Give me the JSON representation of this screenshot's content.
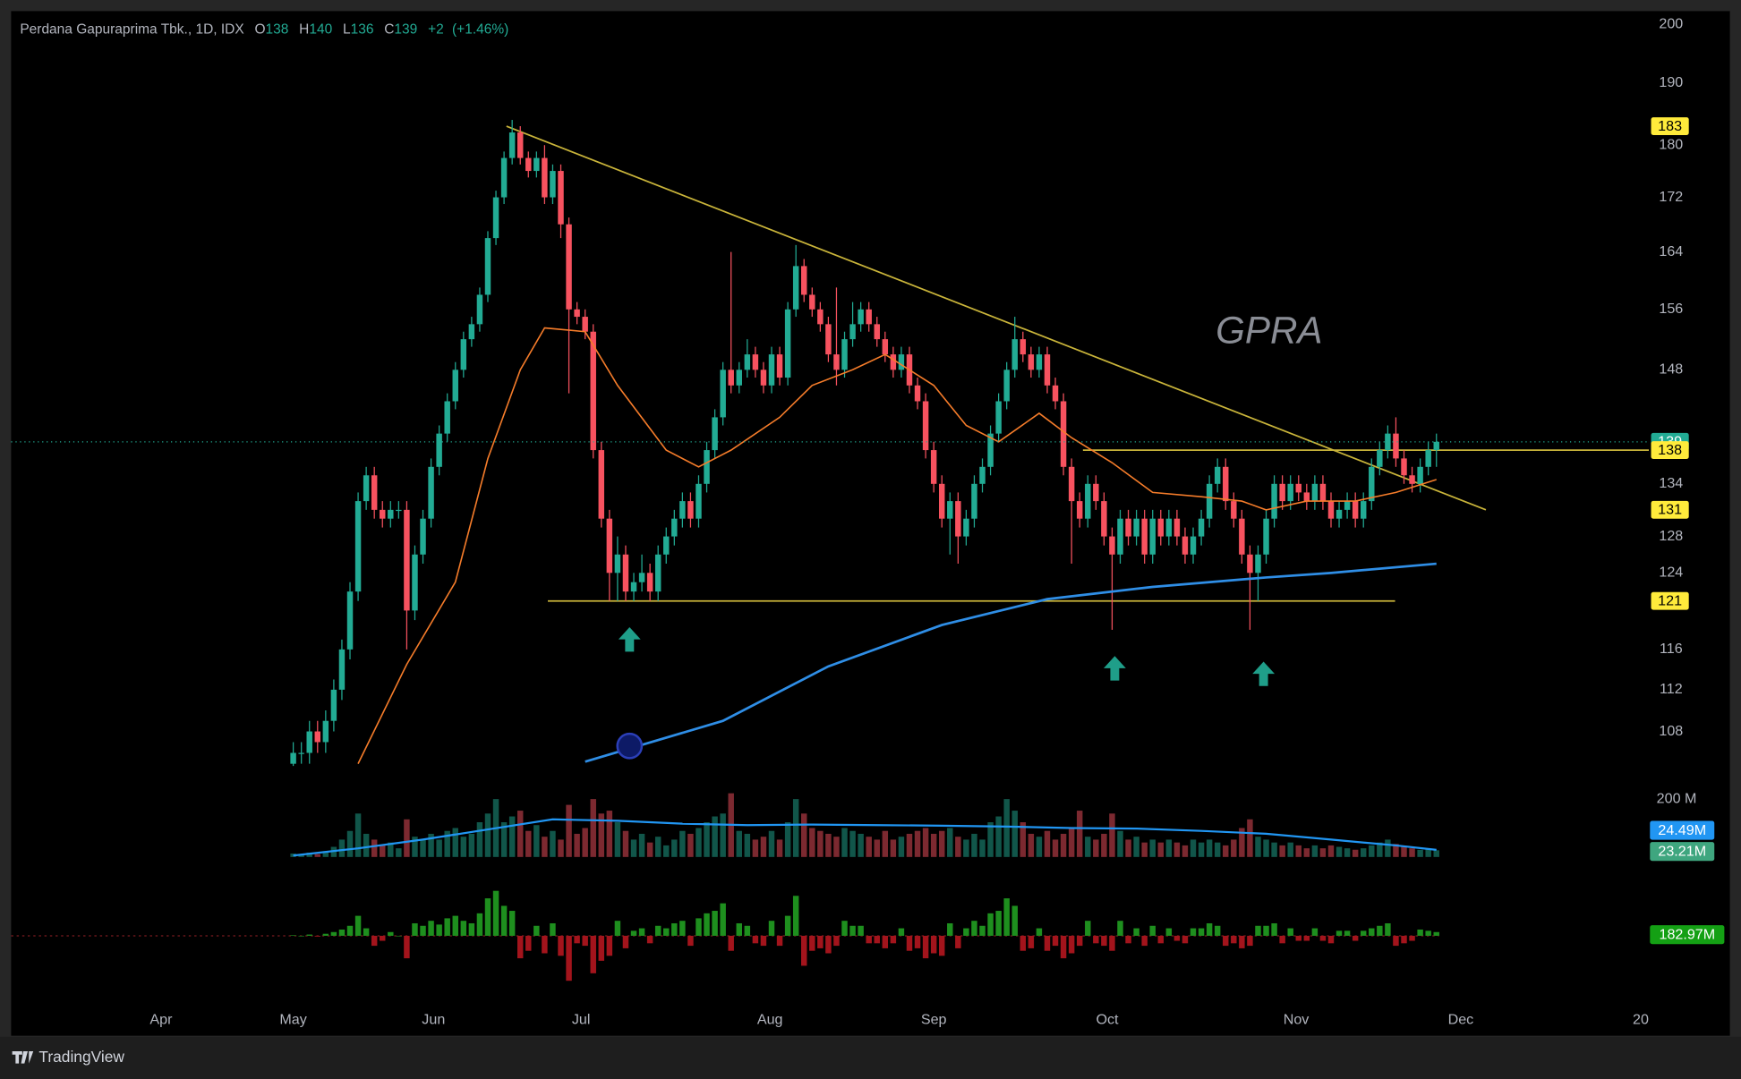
{
  "chart_data": {
    "type": "candlestick",
    "title": "Perdana Gapuraprima Tbk., 1D, IDX",
    "ohlc_labels": [
      "O",
      "H",
      "L",
      "C"
    ],
    "change": "+2",
    "change_pct": "(+1.46%)",
    "watermark": "GPRA",
    "footer": "TradingView",
    "log": true,
    "grid": false,
    "up_color": "#22ab94",
    "down_color": "#f7525f",
    "xlim": [
      -34.8,
      167.2
    ],
    "xticks": [
      {
        "value": -16.3,
        "label": "Apr"
      },
      {
        "value": 0,
        "label": "May"
      },
      {
        "value": 17.3,
        "label": "Jun"
      },
      {
        "value": 35.5,
        "label": "Jul"
      },
      {
        "value": 58.8,
        "label": "Aug"
      },
      {
        "value": 79,
        "label": "Sep"
      },
      {
        "value": 100.4,
        "label": "Oct"
      },
      {
        "value": 123.7,
        "label": "Nov"
      },
      {
        "value": 144,
        "label": "Dec"
      },
      {
        "value": 166.2,
        "label": "20"
      }
    ],
    "ylim": [
      104.8,
      202.3
    ],
    "yticks": [
      108,
      112,
      116,
      124,
      128,
      134,
      148,
      156,
      164,
      172,
      180,
      190,
      200
    ],
    "open": [
      105,
      106,
      106,
      108,
      107,
      109,
      112,
      116,
      122,
      132,
      135,
      131,
      130,
      131,
      131,
      120,
      126,
      130,
      136,
      140,
      144,
      148,
      152,
      154,
      158,
      166,
      172,
      178,
      182,
      178,
      176,
      178,
      172,
      176,
      168,
      156,
      155,
      153,
      138,
      130,
      124,
      126,
      122,
      123,
      124,
      122,
      126,
      128,
      130,
      132,
      130,
      134,
      138,
      142,
      148,
      146,
      148,
      150,
      148,
      146,
      150,
      147,
      156,
      162,
      158,
      156,
      154,
      150,
      148,
      152,
      154,
      156,
      154,
      152,
      150,
      148,
      150,
      146,
      144,
      138,
      134,
      130,
      132,
      128,
      130,
      134,
      136,
      140,
      144,
      148,
      152,
      150,
      148,
      150,
      146,
      144,
      136,
      132,
      130,
      134,
      132,
      128,
      126,
      130,
      128,
      130,
      126,
      130,
      128,
      130,
      128,
      126,
      128,
      130,
      134,
      136,
      132,
      130,
      126,
      124,
      126,
      130,
      134,
      132,
      134,
      133,
      132,
      134,
      132,
      130,
      131,
      132,
      130,
      132,
      136,
      138,
      140,
      137,
      135,
      134,
      136,
      138
    ],
    "high": [
      107,
      107,
      109,
      109,
      110,
      113,
      117,
      123,
      133,
      136,
      136,
      132,
      132,
      132,
      132,
      127,
      131,
      137,
      141,
      145,
      149,
      153,
      155,
      159,
      167,
      173,
      179,
      184,
      183,
      179,
      179,
      180,
      177,
      177,
      169,
      157,
      156,
      154,
      139,
      131,
      128,
      127,
      124,
      126,
      125,
      127,
      129,
      131,
      133,
      133,
      135,
      139,
      143,
      149,
      164,
      149,
      152,
      151,
      149,
      151,
      151,
      157,
      165,
      163,
      159,
      157,
      155,
      159,
      153,
      157,
      157,
      157,
      155,
      153,
      151,
      151,
      151,
      147,
      145,
      139,
      135,
      133,
      133,
      131,
      135,
      137,
      141,
      145,
      149,
      155,
      153,
      151,
      151,
      151,
      147,
      145,
      137,
      133,
      135,
      135,
      133,
      129,
      131,
      131,
      131,
      131,
      131,
      131,
      131,
      131,
      129,
      129,
      131,
      135,
      137,
      137,
      133,
      131,
      127,
      127,
      131,
      135,
      135,
      135,
      135,
      134,
      135,
      135,
      133,
      132,
      133,
      133,
      133,
      137,
      139,
      141,
      142,
      138,
      136,
      137,
      139,
      140
    ],
    "low": [
      104,
      105,
      105,
      106,
      106,
      108,
      111,
      115,
      121,
      131,
      130,
      129,
      129,
      130,
      116,
      119,
      125,
      129,
      135,
      139,
      143,
      147,
      151,
      153,
      157,
      165,
      171,
      177,
      177,
      175,
      175,
      171,
      171,
      166,
      145,
      154,
      152,
      137,
      129,
      121,
      121,
      121,
      121,
      122,
      121,
      121,
      125,
      127,
      129,
      129,
      129,
      133,
      137,
      141,
      145,
      145,
      147,
      147,
      145,
      145,
      146,
      146,
      155,
      157,
      155,
      153,
      149,
      146,
      147,
      151,
      153,
      153,
      151,
      149,
      147,
      147,
      145,
      143,
      137,
      133,
      129,
      126,
      125,
      127,
      129,
      133,
      135,
      139,
      143,
      147,
      149,
      147,
      147,
      145,
      143,
      135,
      125,
      129,
      129,
      131,
      127,
      118,
      125,
      127,
      127,
      125,
      125,
      127,
      127,
      127,
      125,
      125,
      127,
      129,
      133,
      131,
      129,
      125,
      118,
      121,
      125,
      129,
      131,
      131,
      132,
      131,
      131,
      131,
      129,
      129,
      130,
      129,
      129,
      131,
      135,
      137,
      136,
      134,
      133,
      133,
      135,
      136
    ],
    "close": [
      106,
      106,
      108,
      107,
      109,
      112,
      116,
      122,
      132,
      135,
      131,
      130,
      131,
      131,
      120,
      126,
      130,
      136,
      140,
      144,
      148,
      152,
      154,
      158,
      166,
      172,
      178,
      182,
      178,
      176,
      178,
      172,
      176,
      168,
      156,
      155,
      153,
      138,
      130,
      124,
      126,
      122,
      123,
      124,
      122,
      126,
      128,
      130,
      132,
      130,
      134,
      138,
      142,
      148,
      146,
      148,
      150,
      148,
      146,
      150,
      147,
      156,
      162,
      158,
      156,
      154,
      150,
      148,
      152,
      154,
      156,
      154,
      152,
      150,
      148,
      150,
      146,
      144,
      138,
      134,
      130,
      132,
      128,
      130,
      134,
      136,
      140,
      144,
      148,
      152,
      150,
      148,
      150,
      146,
      144,
      136,
      132,
      130,
      134,
      132,
      128,
      126,
      130,
      128,
      130,
      126,
      130,
      128,
      130,
      128,
      126,
      128,
      130,
      134,
      136,
      132,
      130,
      126,
      124,
      126,
      130,
      134,
      132,
      134,
      133,
      132,
      134,
      132,
      130,
      131,
      132,
      130,
      132,
      136,
      138,
      140,
      137,
      135,
      134,
      136,
      138,
      139
    ],
    "ema": {
      "color": "#f57c2a",
      "x": [
        8,
        14,
        20,
        24,
        28,
        31,
        36,
        40,
        46,
        50,
        54,
        60,
        64,
        69,
        73,
        79,
        83,
        87,
        92,
        96,
        101,
        106,
        112,
        117,
        120,
        125,
        131,
        136,
        141
      ],
      "values": [
        105,
        114.5,
        123,
        137,
        148,
        153.5,
        153,
        146,
        138,
        136,
        138,
        142,
        146,
        148,
        150,
        146,
        141,
        139,
        142.5,
        139.5,
        136.5,
        133,
        132.5,
        132,
        131,
        132,
        132,
        133,
        134.5
      ]
    },
    "sma": {
      "color": "#2f8ee6",
      "x": [
        36,
        53,
        66,
        80,
        93,
        106,
        120,
        128,
        141
      ],
      "values": [
        105.2,
        109,
        114.3,
        118.5,
        121.2,
        122.5,
        123.5,
        124,
        125
      ]
    },
    "trendlines": [
      {
        "color": "#c9b43a",
        "x": [
          26.3,
          147.1
        ],
        "y": [
          183,
          131
        ]
      },
      {
        "color": "#c9b43a",
        "x": [
          31.4,
          135.9
        ],
        "y": [
          121,
          121
        ]
      },
      {
        "color": "#c9b43a",
        "x": [
          97.4,
          167.2
        ],
        "y": [
          138,
          138
        ]
      }
    ],
    "volume": {
      "ylim": [
        0,
        230
      ],
      "yticks": [
        {
          "value": 200,
          "label": "200 M"
        }
      ],
      "values": [
        12,
        8,
        15,
        10,
        20,
        35,
        60,
        90,
        150,
        80,
        60,
        40,
        50,
        30,
        130,
        70,
        60,
        80,
        60,
        90,
        100,
        70,
        80,
        120,
        150,
        200,
        120,
        140,
        160,
        90,
        110,
        70,
        90,
        60,
        180,
        80,
        100,
        200,
        150,
        160,
        120,
        90,
        60,
        80,
        50,
        70,
        40,
        60,
        90,
        80,
        100,
        120,
        140,
        150,
        220,
        90,
        80,
        60,
        70,
        90,
        60,
        120,
        200,
        150,
        100,
        90,
        80,
        70,
        100,
        90,
        80,
        70,
        60,
        90,
        60,
        70,
        80,
        90,
        100,
        80,
        90,
        100,
        70,
        60,
        80,
        60,
        120,
        140,
        200,
        160,
        120,
        80,
        70,
        90,
        60,
        80,
        100,
        160,
        70,
        60,
        80,
        150,
        90,
        60,
        70,
        50,
        60,
        50,
        60,
        50,
        40,
        60,
        50,
        60,
        50,
        40,
        60,
        100,
        130,
        70,
        60,
        50,
        40,
        50,
        40,
        30,
        40,
        30,
        40,
        35,
        30,
        25,
        30,
        40,
        50,
        60,
        45,
        35,
        30,
        25,
        28,
        23.21
      ],
      "value_label": "23.21M",
      "ma": {
        "color": "#2196f3",
        "x": [
          0,
          8,
          16,
          24,
          32,
          40,
          48,
          56,
          64,
          72,
          80,
          88,
          96,
          104,
          112,
          120,
          128,
          136,
          141
        ],
        "values": [
          5,
          30,
          60,
          95,
          130,
          125,
          115,
          110,
          112,
          110,
          108,
          105,
          100,
          98,
          90,
          80,
          60,
          40,
          24.49
        ],
        "value_label": "24.49M"
      }
    },
    "oscillator": {
      "ylim": [
        -200,
        200
      ],
      "up_color": "#1e8f1e",
      "down_color": "#a3141c",
      "values": [
        2,
        0,
        5,
        -3,
        8,
        15,
        25,
        40,
        80,
        30,
        -40,
        -20,
        15,
        0,
        -90,
        50,
        40,
        60,
        45,
        70,
        80,
        60,
        50,
        90,
        150,
        180,
        120,
        100,
        -90,
        -60,
        40,
        -70,
        50,
        -80,
        -180,
        -30,
        -40,
        -150,
        -100,
        -80,
        60,
        -50,
        20,
        30,
        -30,
        40,
        30,
        50,
        60,
        -40,
        70,
        90,
        100,
        130,
        -60,
        50,
        40,
        -30,
        -40,
        60,
        -40,
        80,
        160,
        -120,
        -60,
        -50,
        -70,
        -40,
        60,
        40,
        40,
        -30,
        -30,
        -50,
        -30,
        30,
        -60,
        -50,
        -90,
        -70,
        -80,
        50,
        -50,
        30,
        60,
        40,
        90,
        100,
        150,
        120,
        -60,
        -50,
        30,
        -60,
        -40,
        -90,
        -70,
        -40,
        60,
        -30,
        -40,
        -60,
        60,
        -30,
        30,
        -40,
        40,
        -30,
        30,
        -20,
        -30,
        30,
        30,
        50,
        40,
        -40,
        -30,
        -50,
        -40,
        40,
        40,
        50,
        -30,
        30,
        -20,
        -20,
        30,
        -20,
        -30,
        20,
        20,
        -20,
        20,
        30,
        40,
        50,
        -40,
        -30,
        -20,
        25,
        20,
        15
      ],
      "value_label": "182.97M"
    }
  }
}
